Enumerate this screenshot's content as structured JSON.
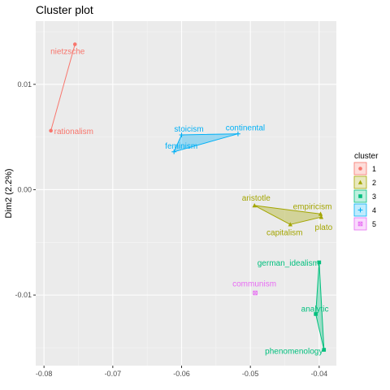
{
  "chart_data": {
    "type": "scatter",
    "title": "Cluster plot",
    "xlabel": "",
    "ylabel": "Dim2 (2.2%)",
    "xlim": [
      -0.0812,
      -0.0375
    ],
    "ylim": [
      -0.0167,
      0.016
    ],
    "x_ticks": [
      -0.08,
      -0.07,
      -0.06,
      -0.05,
      -0.04
    ],
    "x_tick_labels": [
      "-0.08",
      "-0.07",
      "-0.06",
      "-0.05",
      "-0.04"
    ],
    "y_ticks": [
      0.01,
      0.0,
      -0.01
    ],
    "y_tick_labels": [
      "0.01",
      "0.00",
      "-0.01"
    ],
    "grid": true,
    "legend": {
      "title": "cluster",
      "position": "right"
    },
    "series": [
      {
        "name": "1",
        "color": "#F8766D",
        "symbol": "circle",
        "hull": [
          "nietzsche",
          "rationalism"
        ],
        "points": [
          {
            "label": "nietzsche",
            "x": -0.0755,
            "y": 0.0138
          },
          {
            "label": "rationalism",
            "x": -0.079,
            "y": 0.0056
          }
        ]
      },
      {
        "name": "2",
        "color": "#A3A500",
        "symbol": "triangle",
        "hull": [
          "aristotle",
          "empiricism",
          "plato",
          "capitalism"
        ],
        "points": [
          {
            "label": "aristotle",
            "x": -0.0494,
            "y": -0.0015
          },
          {
            "label": "empiricism",
            "x": -0.0398,
            "y": -0.0023
          },
          {
            "label": "plato",
            "x": -0.0397,
            "y": -0.0026
          },
          {
            "label": "capitalism",
            "x": -0.0442,
            "y": -0.0033
          }
        ]
      },
      {
        "name": "3",
        "color": "#00BF7D",
        "symbol": "square",
        "hull": [
          "german_idealism",
          "phenomenology",
          "analytic"
        ],
        "points": [
          {
            "label": "german_idealism",
            "x": -0.04,
            "y": -0.0069
          },
          {
            "label": "analytic",
            "x": -0.0405,
            "y": -0.0118
          },
          {
            "label": "phenomenology",
            "x": -0.0393,
            "y": -0.0152
          }
        ]
      },
      {
        "name": "4",
        "color": "#00B0F6",
        "symbol": "cross",
        "hull": [
          "stoicism",
          "continental",
          "feminism"
        ],
        "points": [
          {
            "label": "stoicism",
            "x": -0.06,
            "y": 0.0052
          },
          {
            "label": "continental",
            "x": -0.0518,
            "y": 0.0053
          },
          {
            "label": "feminism",
            "x": -0.0611,
            "y": 0.0036
          }
        ]
      },
      {
        "name": "5",
        "color": "#E76BF3",
        "symbol": "boxx",
        "hull": [
          "communism"
        ],
        "points": [
          {
            "label": "communism",
            "x": -0.0493,
            "y": -0.0098
          }
        ]
      }
    ]
  }
}
